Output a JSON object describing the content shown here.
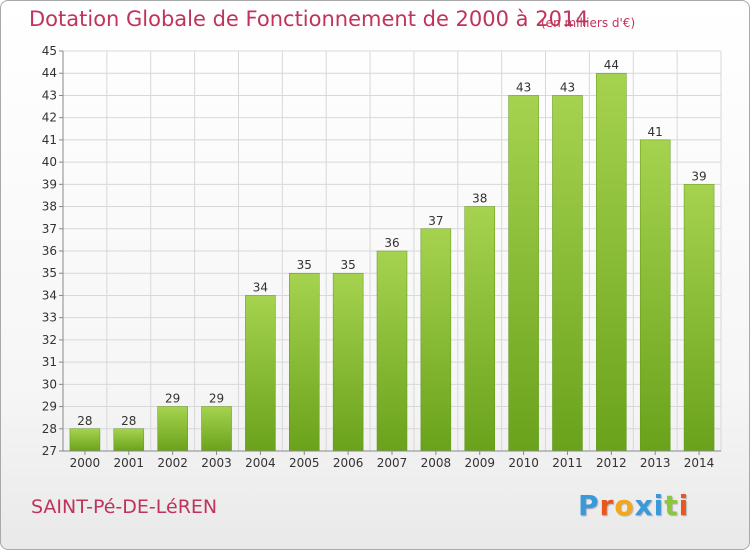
{
  "header": {
    "title": "Dotation Globale de Fonctionnement de 2000 à 2014",
    "unit_note": "(en milliers d'€)"
  },
  "footer": {
    "commune": "SAINT-Pé-DE-LéREN",
    "brand": "Proxiti",
    "brand_letter_colors": [
      "#3a9ad9",
      "#e8571f",
      "#f2a81d",
      "#3a9ad9",
      "#3a9ad9",
      "#8cc63f",
      "#e8571f"
    ]
  },
  "chart_data": {
    "type": "bar",
    "categories": [
      "2000",
      "2001",
      "2002",
      "2003",
      "2004",
      "2005",
      "2006",
      "2007",
      "2008",
      "2009",
      "2010",
      "2011",
      "2012",
      "2013",
      "2014"
    ],
    "values": [
      28,
      28,
      29,
      29,
      34,
      35,
      35,
      36,
      37,
      38,
      43,
      43,
      44,
      41,
      39
    ],
    "ylim": [
      27,
      45
    ],
    "yticks": [
      27,
      28,
      29,
      30,
      31,
      32,
      33,
      34,
      35,
      36,
      37,
      38,
      39,
      40,
      41,
      42,
      43,
      44,
      45
    ],
    "grid": true,
    "data_labels": true,
    "colors": {
      "bar_light": "#a6d34f",
      "bar_dark": "#6aa21c",
      "grid": "#d8d8d8",
      "axis": "#888888",
      "text": "#333333"
    }
  }
}
